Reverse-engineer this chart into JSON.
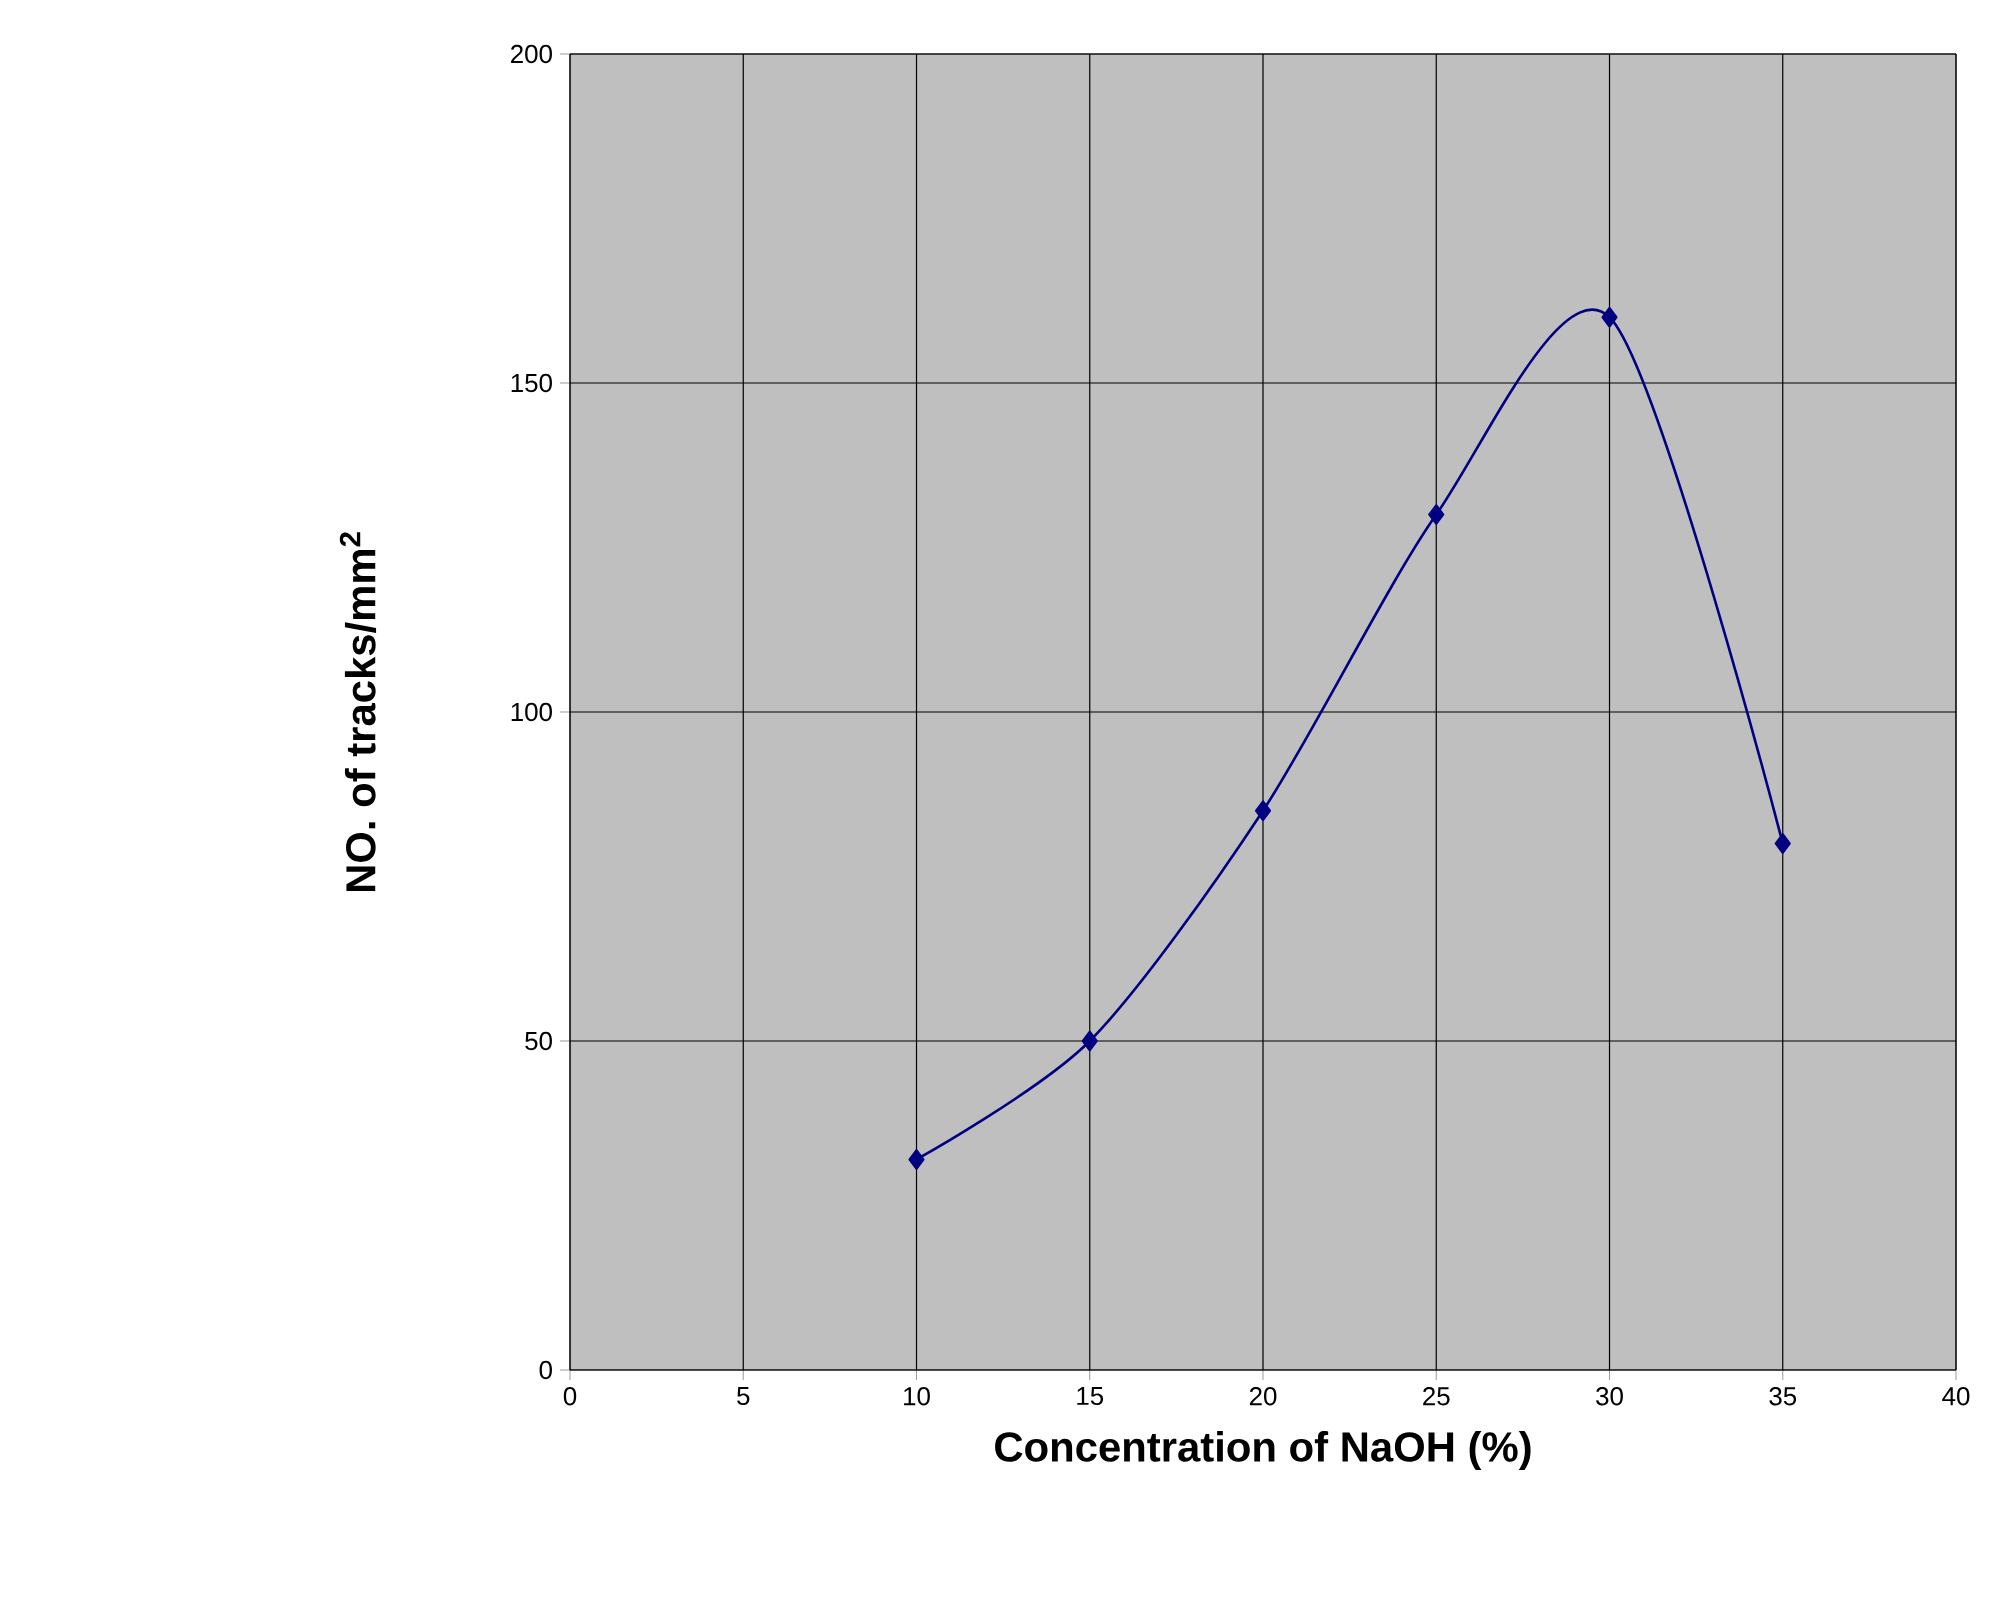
{
  "chart_data": {
    "type": "line",
    "xlabel": "**Concentration of NaOH (%)**",
    "ylabel": "**NO. of tracks/mm$^{2}$**",
    "x": [
      10,
      15,
      20,
      25,
      30,
      35
    ],
    "series": [
      {
        "color": "#000080",
        "values": [
          32,
          50,
          85,
          130,
          160,
          80
        ]
      }
    ],
    "xlim": [
      0,
      40
    ],
    "xticks": [
      0,
      5,
      10,
      15,
      20,
      25,
      30,
      35,
      40
    ],
    "ylim": [
      0,
      200
    ],
    "yticks": [
      0,
      50,
      100,
      150,
      200
    ],
    "grid": true,
    "marker": "diamond",
    "line_style": "solid"
  }
}
